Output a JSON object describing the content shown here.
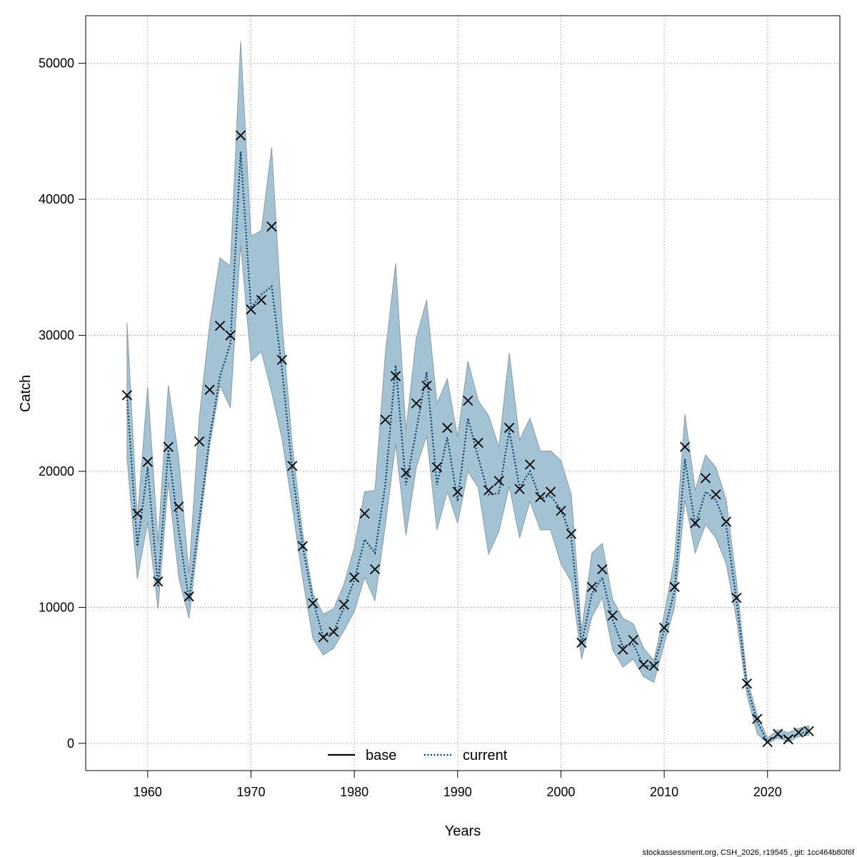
{
  "chart_data": {
    "type": "line",
    "xlabel": "Years",
    "ylabel": "Catch",
    "xlim": [
      1954,
      2027
    ],
    "ylim": [
      -2000,
      53500
    ],
    "x_ticks": [
      1960,
      1970,
      1980,
      1990,
      2000,
      2010,
      2020
    ],
    "y_ticks": [
      0,
      10000,
      20000,
      30000,
      40000,
      50000
    ],
    "grid": true,
    "legend": {
      "position": "bottom-center",
      "entries": [
        "base",
        "current"
      ]
    },
    "colors": {
      "band": "#a3c3d4",
      "band_edge": "#8a9aa4",
      "current_line": "#083b63",
      "base_line": "#000000",
      "marker": "#000000"
    },
    "x": [
      1958,
      1959,
      1960,
      1961,
      1962,
      1963,
      1964,
      1965,
      1966,
      1967,
      1968,
      1969,
      1970,
      1971,
      1972,
      1973,
      1974,
      1975,
      1976,
      1977,
      1978,
      1979,
      1980,
      1981,
      1982,
      1983,
      1984,
      1985,
      1986,
      1987,
      1988,
      1989,
      1990,
      1991,
      1992,
      1993,
      1994,
      1995,
      1996,
      1997,
      1998,
      1999,
      2000,
      2001,
      2002,
      2003,
      2004,
      2005,
      2006,
      2007,
      2008,
      2009,
      2010,
      2011,
      2012,
      2013,
      2014,
      2015,
      2016,
      2017,
      2018,
      2019,
      2020,
      2021,
      2022,
      2023,
      2024
    ],
    "series": [
      {
        "name": "base",
        "style": "points",
        "values": [
          25600,
          16900,
          20700,
          11900,
          21800,
          17400,
          10800,
          22200,
          26000,
          30700,
          30000,
          44700,
          31900,
          32600,
          38000,
          28200,
          20400,
          14500,
          10300,
          7800,
          8200,
          10200,
          12200,
          16900,
          12800,
          23800,
          27000,
          19900,
          25000,
          26300,
          20300,
          23200,
          18500,
          25200,
          22100,
          18600,
          19300,
          23200,
          18700,
          20500,
          18100,
          18500,
          17100,
          15400,
          7400,
          11500,
          12800,
          9400,
          6900,
          7600,
          5800,
          5700,
          8500,
          11500,
          21800,
          16200,
          19500,
          18300,
          16300,
          10700,
          4400,
          1800,
          100,
          700,
          300,
          800,
          900
        ]
      },
      {
        "name": "current",
        "style": "dotted",
        "values": [
          25500,
          14500,
          20300,
          11500,
          21600,
          15700,
          10500,
          16500,
          22500,
          27000,
          29400,
          43500,
          32000,
          33000,
          33600,
          27500,
          20000,
          14500,
          10500,
          7800,
          8200,
          10000,
          12000,
          15000,
          14000,
          19000,
          27800,
          19000,
          23000,
          27300,
          19000,
          22500,
          17800,
          23900,
          21000,
          18300,
          18400,
          23000,
          18800,
          20000,
          18000,
          18200,
          17200,
          15200,
          7300,
          11000,
          12200,
          9100,
          7100,
          7300,
          5700,
          5700,
          8300,
          11200,
          20900,
          16000,
          18500,
          17900,
          16000,
          10500,
          4200,
          1600,
          100,
          600,
          400,
          700,
          900
        ]
      },
      {
        "name": "band_upper",
        "style": "band",
        "values": [
          30900,
          16500,
          26200,
          14800,
          26300,
          21000,
          12500,
          24000,
          30800,
          35700,
          35100,
          51600,
          37300,
          37700,
          43800,
          31000,
          21900,
          15500,
          11000,
          9500,
          9900,
          11700,
          14400,
          18500,
          18600,
          28600,
          35300,
          23000,
          29800,
          32600,
          25000,
          26800,
          22500,
          28100,
          25200,
          24100,
          21800,
          28700,
          22300,
          23900,
          21500,
          21500,
          20800,
          18300,
          8300,
          14000,
          14700,
          10600,
          9200,
          8800,
          7000,
          6100,
          9500,
          13600,
          24200,
          18600,
          21200,
          20300,
          17900,
          11900,
          4800,
          2100,
          400,
          1000,
          800,
          1100,
          1300
        ]
      },
      {
        "name": "band_lower",
        "style": "band",
        "values": [
          21000,
          12100,
          16300,
          9900,
          19200,
          12200,
          9200,
          15700,
          21900,
          26300,
          24700,
          36700,
          28100,
          28800,
          25800,
          22400,
          17400,
          12100,
          7700,
          6500,
          7000,
          8300,
          9700,
          12200,
          10500,
          16000,
          22000,
          15300,
          20300,
          22600,
          15700,
          18500,
          16200,
          20000,
          18800,
          13900,
          15600,
          18900,
          15100,
          17800,
          15700,
          15700,
          13200,
          11900,
          6200,
          9300,
          10700,
          6900,
          5600,
          6200,
          4900,
          4500,
          7300,
          10000,
          17900,
          14000,
          16100,
          15100,
          13200,
          9100,
          3600,
          700,
          0,
          400,
          100,
          500,
          600
        ]
      }
    ]
  },
  "footer": "stockassessment.org, CSH_2026, r19545 , git: 1cc464b80f6f"
}
